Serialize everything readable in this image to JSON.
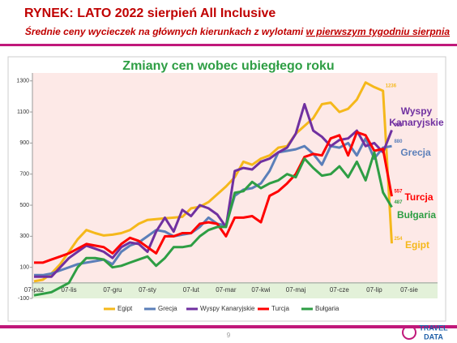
{
  "header": {
    "title": "RYNEK: LATO 2022 sierpień All Inclusive",
    "subtitle": "Średnie ceny wycieczek na głównych kierunkach z wylotami ",
    "subtitle_underlined": "w pierwszym tygodniu sierpnia"
  },
  "footer": {
    "page_number": "9",
    "logo_top": "TRAVEL",
    "logo_bottom": "DATA"
  },
  "chart_data": {
    "type": "line",
    "title": "Zmiany cen wobec ubiegłego roku",
    "categories": [
      "07-paź",
      null,
      null,
      null,
      "07-lis",
      null,
      null,
      null,
      null,
      "07-gru",
      null,
      null,
      null,
      "07-sty",
      null,
      null,
      null,
      null,
      "07-lut",
      null,
      null,
      null,
      "07-mar",
      null,
      null,
      null,
      "07-kwi",
      null,
      null,
      null,
      "07-maj",
      null,
      null,
      null,
      null,
      "07-cze",
      null,
      null,
      null,
      "07-lip",
      null,
      null,
      null,
      "07-sie"
    ],
    "ylim": [
      -100,
      1400
    ],
    "yticks": [
      -100,
      100,
      300,
      500,
      700,
      900,
      1100,
      1300
    ],
    "grid": false,
    "legend": "bottom",
    "series": [
      {
        "name": "Egipt",
        "color": "#f5b81b",
        "values": [
          10,
          20,
          60,
          120,
          200,
          280,
          340,
          320,
          305,
          310,
          320,
          340,
          380,
          405,
          410,
          415,
          420,
          425,
          480,
          490,
          520,
          570,
          620,
          680,
          780,
          760,
          800,
          820,
          870,
          880,
          960,
          1010,
          1060,
          1150,
          1160,
          1100,
          1120,
          1180,
          1290,
          1260,
          1236,
          254,
          null,
          null
        ],
        "value_labels": [
          null,
          null,
          null,
          null,
          null,
          null,
          null,
          null,
          null,
          null,
          null,
          null,
          null,
          null,
          null,
          null,
          null,
          null,
          null,
          null,
          null,
          null,
          null,
          null,
          null,
          null,
          null,
          null,
          null,
          null,
          null,
          null,
          null,
          null,
          null,
          null,
          null,
          null,
          null,
          null,
          "1236",
          "254",
          null,
          null
        ]
      },
      {
        "name": "Grecja",
        "color": "#5b7fb9",
        "values": [
          50,
          50,
          60,
          80,
          100,
          120,
          130,
          140,
          150,
          120,
          200,
          240,
          260,
          300,
          340,
          330,
          300,
          310,
          320,
          360,
          420,
          380,
          370,
          560,
          600,
          610,
          640,
          720,
          840,
          850,
          860,
          880,
          830,
          760,
          880,
          870,
          900,
          820,
          930,
          800,
          870,
          880,
          null,
          null
        ],
        "value_labels": [
          null,
          null,
          null,
          null,
          null,
          null,
          null,
          null,
          null,
          null,
          null,
          null,
          null,
          null,
          null,
          null,
          null,
          null,
          null,
          null,
          null,
          null,
          null,
          null,
          null,
          null,
          null,
          null,
          null,
          null,
          null,
          null,
          null,
          null,
          null,
          null,
          null,
          null,
          null,
          null,
          null,
          "880",
          null,
          null
        ]
      },
      {
        "name": "Wyspy Kanaryjskie",
        "color": "#7030a0",
        "values": [
          40,
          40,
          40,
          100,
          160,
          200,
          240,
          220,
          200,
          160,
          230,
          260,
          250,
          200,
          330,
          420,
          330,
          470,
          430,
          500,
          480,
          440,
          360,
          720,
          740,
          730,
          780,
          800,
          840,
          870,
          960,
          1150,
          980,
          940,
          880,
          920,
          930,
          980,
          880,
          900,
          840,
          983,
          null,
          null
        ],
        "value_labels": [
          null,
          null,
          null,
          null,
          null,
          null,
          null,
          null,
          null,
          null,
          null,
          null,
          null,
          null,
          null,
          null,
          null,
          null,
          null,
          null,
          null,
          null,
          null,
          null,
          null,
          null,
          null,
          null,
          null,
          null,
          null,
          null,
          null,
          null,
          null,
          null,
          null,
          null,
          null,
          null,
          null,
          "983",
          null,
          null
        ]
      },
      {
        "name": "Turcja",
        "color": "#ff0000",
        "values": [
          130,
          130,
          150,
          170,
          190,
          220,
          250,
          240,
          230,
          190,
          250,
          290,
          270,
          230,
          190,
          300,
          300,
          320,
          320,
          380,
          390,
          380,
          300,
          420,
          420,
          430,
          390,
          560,
          590,
          640,
          700,
          810,
          830,
          820,
          930,
          950,
          820,
          970,
          950,
          850,
          862,
          557,
          null,
          null
        ],
        "value_labels": [
          null,
          null,
          null,
          null,
          null,
          null,
          null,
          null,
          null,
          null,
          null,
          null,
          null,
          null,
          null,
          null,
          null,
          null,
          null,
          null,
          null,
          null,
          null,
          null,
          null,
          null,
          null,
          null,
          null,
          null,
          null,
          null,
          null,
          null,
          null,
          null,
          null,
          null,
          null,
          null,
          null,
          "557",
          null,
          null
        ]
      },
      {
        "name": "Bułgaria",
        "color": "#2e9e44",
        "values": [
          -80,
          -70,
          -60,
          -30,
          0,
          100,
          160,
          160,
          150,
          100,
          110,
          130,
          150,
          170,
          110,
          160,
          230,
          230,
          240,
          300,
          340,
          360,
          360,
          580,
          590,
          650,
          610,
          640,
          660,
          700,
          680,
          800,
          740,
          690,
          700,
          750,
          680,
          780,
          660,
          840,
          582,
          487,
          null,
          null
        ],
        "value_labels": [
          null,
          null,
          null,
          null,
          null,
          null,
          null,
          null,
          null,
          null,
          null,
          null,
          null,
          null,
          null,
          null,
          null,
          null,
          null,
          null,
          null,
          null,
          null,
          null,
          null,
          null,
          null,
          null,
          null,
          null,
          null,
          null,
          null,
          null,
          null,
          null,
          null,
          null,
          null,
          null,
          null,
          "487",
          null,
          null
        ]
      }
    ]
  }
}
